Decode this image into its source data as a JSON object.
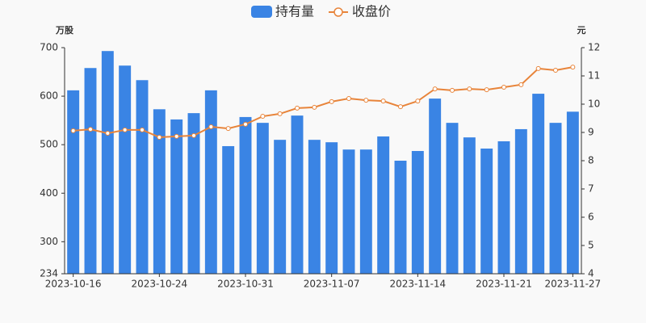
{
  "chart_data": {
    "type": "bar-line",
    "y_label": "万股",
    "y2_label": "元",
    "categories": [
      "2023-10-16",
      null,
      null,
      null,
      null,
      "2023-10-24",
      null,
      null,
      null,
      null,
      "2023-10-31",
      null,
      null,
      null,
      null,
      "2023-11-07",
      null,
      null,
      null,
      null,
      "2023-11-14",
      null,
      null,
      null,
      null,
      "2023-11-21",
      null,
      null,
      null,
      "2023-11-27"
    ],
    "series": [
      {
        "name": "持有量",
        "type": "bar",
        "color": "#3a84e4",
        "axis": "y",
        "values": [
          612,
          658,
          693,
          663,
          633,
          573,
          552,
          565,
          612,
          497,
          557,
          545,
          510,
          560,
          510,
          505,
          490,
          490,
          517,
          467,
          487,
          595,
          545,
          515,
          492,
          507,
          532,
          605,
          545,
          568
        ]
      },
      {
        "name": "收盘价",
        "type": "line",
        "color": "#e8843a",
        "axis": "y2",
        "values": [
          9.06,
          9.11,
          8.97,
          9.09,
          9.09,
          8.83,
          8.86,
          8.89,
          9.2,
          9.14,
          9.29,
          9.57,
          9.66,
          9.86,
          9.89,
          10.09,
          10.2,
          10.14,
          10.11,
          9.91,
          10.11,
          10.54,
          10.49,
          10.54,
          10.51,
          10.6,
          10.69,
          11.26,
          11.2,
          11.31
        ]
      }
    ],
    "ylim": [
      234,
      700
    ],
    "yticks": [
      234,
      300,
      400,
      500,
      600,
      700
    ],
    "y2lim": [
      4,
      12
    ],
    "y2ticks": [
      4,
      5,
      6,
      7,
      8,
      9,
      10,
      11,
      12
    ],
    "grid": false,
    "legend": "top"
  }
}
